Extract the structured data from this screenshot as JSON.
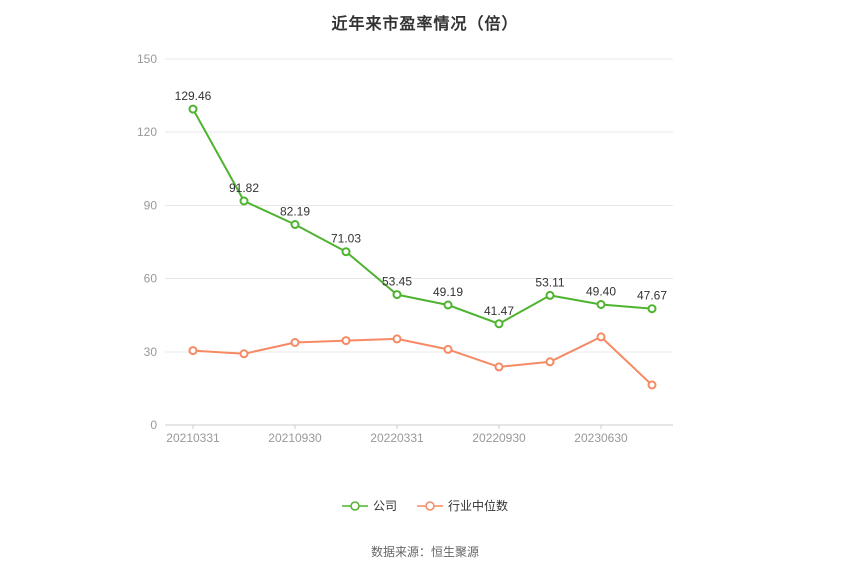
{
  "page": {
    "title": "近年来市盈率情况（倍）",
    "footer": "数据来源：恒生聚源"
  },
  "colors": {
    "company_line": "#4eb32f",
    "industry_line": "#f58a64",
    "gridline": "#e8e8e8",
    "axis_line": "#cccccc",
    "axis_text": "#999999",
    "data_label_text": "#333333"
  },
  "chart_data": {
    "type": "line",
    "title": "近年来市盈率情况（倍）",
    "x_tick_labels": [
      "20210331",
      "20210930",
      "20220331",
      "20220930",
      "20230630"
    ],
    "x_tick_point_indices": [
      0,
      2,
      4,
      6,
      8
    ],
    "num_points": 10,
    "ylim": [
      0,
      150
    ],
    "y_ticks": [
      0,
      30,
      60,
      90,
      120,
      150
    ],
    "grid": true,
    "legend_position": "bottom",
    "series": [
      {
        "name": "公司",
        "color": "#4eb32f",
        "data_labels": true,
        "values": [
          129.46,
          91.82,
          82.19,
          71.03,
          53.45,
          49.19,
          41.47,
          53.11,
          49.4,
          47.67
        ]
      },
      {
        "name": "行业中位数",
        "color": "#f58a64",
        "data_labels": false,
        "values": [
          30.5,
          29.2,
          33.8,
          34.6,
          35.3,
          31.0,
          23.8,
          25.9,
          36.1,
          16.4
        ]
      }
    ]
  }
}
